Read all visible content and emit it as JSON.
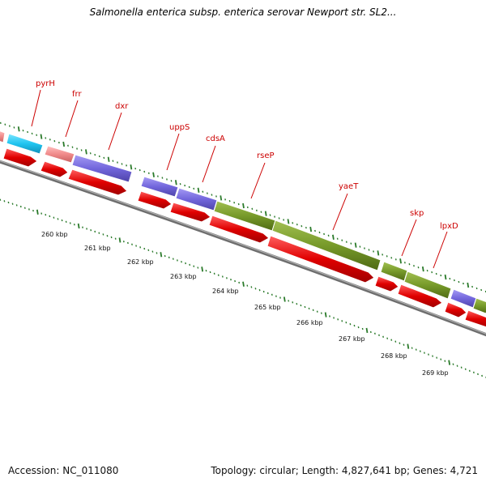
{
  "title": "Salmonella enterica subsp. enterica serovar Newport str. SL2...",
  "footer": {
    "accession": "Accession: NC_011080",
    "summary": "Topology: circular; Length: 4,827,641 bp; Genes: 4,721"
  },
  "colors": {
    "cds_forward": "#e61e1e",
    "gene_blue": "#7b6fe0",
    "gene_olive": "#7a9a2a",
    "gene_cyan": "#22c8f0",
    "gene_pink": "#f09090",
    "label": "#cc0000",
    "backbone": "#888888",
    "tick_green": "#2a7a2a"
  },
  "map": {
    "scale_labels": [
      "260 kbp",
      "261 kbp",
      "262 kbp",
      "263 kbp",
      "264 kbp",
      "265 kbp",
      "266 kbp",
      "267 kbp",
      "268 kbp",
      "269 kbp"
    ],
    "gene_labels": [
      "pyrH",
      "frr",
      "dxr",
      "uppS",
      "cdsA",
      "rseP",
      "yaeT",
      "skp",
      "lpxD"
    ]
  }
}
